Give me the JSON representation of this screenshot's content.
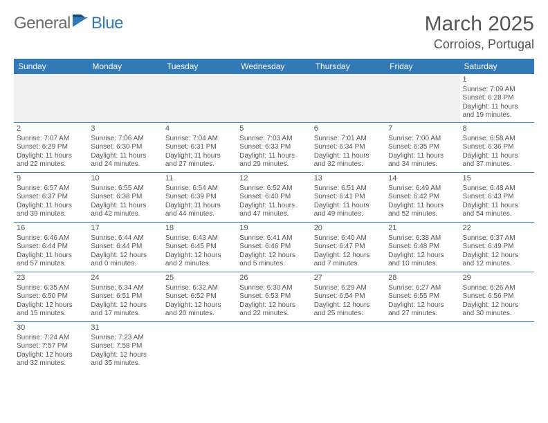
{
  "brand": {
    "general": "General",
    "blue": "Blue"
  },
  "title": "March 2025",
  "location": "Corroios, Portugal",
  "colors": {
    "accent": "#3279b7",
    "text": "#555555",
    "blank_bg": "#f0f0f0",
    "bg": "#ffffff"
  },
  "weekdays": [
    "Sunday",
    "Monday",
    "Tuesday",
    "Wednesday",
    "Thursday",
    "Friday",
    "Saturday"
  ],
  "weeks": [
    [
      null,
      null,
      null,
      null,
      null,
      null,
      {
        "n": "1",
        "sr": "Sunrise: 7:09 AM",
        "ss": "Sunset: 6:28 PM",
        "d1": "Daylight: 11 hours",
        "d2": "and 19 minutes."
      }
    ],
    [
      {
        "n": "2",
        "sr": "Sunrise: 7:07 AM",
        "ss": "Sunset: 6:29 PM",
        "d1": "Daylight: 11 hours",
        "d2": "and 22 minutes."
      },
      {
        "n": "3",
        "sr": "Sunrise: 7:06 AM",
        "ss": "Sunset: 6:30 PM",
        "d1": "Daylight: 11 hours",
        "d2": "and 24 minutes."
      },
      {
        "n": "4",
        "sr": "Sunrise: 7:04 AM",
        "ss": "Sunset: 6:31 PM",
        "d1": "Daylight: 11 hours",
        "d2": "and 27 minutes."
      },
      {
        "n": "5",
        "sr": "Sunrise: 7:03 AM",
        "ss": "Sunset: 6:33 PM",
        "d1": "Daylight: 11 hours",
        "d2": "and 29 minutes."
      },
      {
        "n": "6",
        "sr": "Sunrise: 7:01 AM",
        "ss": "Sunset: 6:34 PM",
        "d1": "Daylight: 11 hours",
        "d2": "and 32 minutes."
      },
      {
        "n": "7",
        "sr": "Sunrise: 7:00 AM",
        "ss": "Sunset: 6:35 PM",
        "d1": "Daylight: 11 hours",
        "d2": "and 34 minutes."
      },
      {
        "n": "8",
        "sr": "Sunrise: 6:58 AM",
        "ss": "Sunset: 6:36 PM",
        "d1": "Daylight: 11 hours",
        "d2": "and 37 minutes."
      }
    ],
    [
      {
        "n": "9",
        "sr": "Sunrise: 6:57 AM",
        "ss": "Sunset: 6:37 PM",
        "d1": "Daylight: 11 hours",
        "d2": "and 39 minutes."
      },
      {
        "n": "10",
        "sr": "Sunrise: 6:55 AM",
        "ss": "Sunset: 6:38 PM",
        "d1": "Daylight: 11 hours",
        "d2": "and 42 minutes."
      },
      {
        "n": "11",
        "sr": "Sunrise: 6:54 AM",
        "ss": "Sunset: 6:39 PM",
        "d1": "Daylight: 11 hours",
        "d2": "and 44 minutes."
      },
      {
        "n": "12",
        "sr": "Sunrise: 6:52 AM",
        "ss": "Sunset: 6:40 PM",
        "d1": "Daylight: 11 hours",
        "d2": "and 47 minutes."
      },
      {
        "n": "13",
        "sr": "Sunrise: 6:51 AM",
        "ss": "Sunset: 6:41 PM",
        "d1": "Daylight: 11 hours",
        "d2": "and 49 minutes."
      },
      {
        "n": "14",
        "sr": "Sunrise: 6:49 AM",
        "ss": "Sunset: 6:42 PM",
        "d1": "Daylight: 11 hours",
        "d2": "and 52 minutes."
      },
      {
        "n": "15",
        "sr": "Sunrise: 6:48 AM",
        "ss": "Sunset: 6:43 PM",
        "d1": "Daylight: 11 hours",
        "d2": "and 54 minutes."
      }
    ],
    [
      {
        "n": "16",
        "sr": "Sunrise: 6:46 AM",
        "ss": "Sunset: 6:44 PM",
        "d1": "Daylight: 11 hours",
        "d2": "and 57 minutes."
      },
      {
        "n": "17",
        "sr": "Sunrise: 6:44 AM",
        "ss": "Sunset: 6:44 PM",
        "d1": "Daylight: 12 hours",
        "d2": "and 0 minutes."
      },
      {
        "n": "18",
        "sr": "Sunrise: 6:43 AM",
        "ss": "Sunset: 6:45 PM",
        "d1": "Daylight: 12 hours",
        "d2": "and 2 minutes."
      },
      {
        "n": "19",
        "sr": "Sunrise: 6:41 AM",
        "ss": "Sunset: 6:46 PM",
        "d1": "Daylight: 12 hours",
        "d2": "and 5 minutes."
      },
      {
        "n": "20",
        "sr": "Sunrise: 6:40 AM",
        "ss": "Sunset: 6:47 PM",
        "d1": "Daylight: 12 hours",
        "d2": "and 7 minutes."
      },
      {
        "n": "21",
        "sr": "Sunrise: 6:38 AM",
        "ss": "Sunset: 6:48 PM",
        "d1": "Daylight: 12 hours",
        "d2": "and 10 minutes."
      },
      {
        "n": "22",
        "sr": "Sunrise: 6:37 AM",
        "ss": "Sunset: 6:49 PM",
        "d1": "Daylight: 12 hours",
        "d2": "and 12 minutes."
      }
    ],
    [
      {
        "n": "23",
        "sr": "Sunrise: 6:35 AM",
        "ss": "Sunset: 6:50 PM",
        "d1": "Daylight: 12 hours",
        "d2": "and 15 minutes."
      },
      {
        "n": "24",
        "sr": "Sunrise: 6:34 AM",
        "ss": "Sunset: 6:51 PM",
        "d1": "Daylight: 12 hours",
        "d2": "and 17 minutes."
      },
      {
        "n": "25",
        "sr": "Sunrise: 6:32 AM",
        "ss": "Sunset: 6:52 PM",
        "d1": "Daylight: 12 hours",
        "d2": "and 20 minutes."
      },
      {
        "n": "26",
        "sr": "Sunrise: 6:30 AM",
        "ss": "Sunset: 6:53 PM",
        "d1": "Daylight: 12 hours",
        "d2": "and 22 minutes."
      },
      {
        "n": "27",
        "sr": "Sunrise: 6:29 AM",
        "ss": "Sunset: 6:54 PM",
        "d1": "Daylight: 12 hours",
        "d2": "and 25 minutes."
      },
      {
        "n": "28",
        "sr": "Sunrise: 6:27 AM",
        "ss": "Sunset: 6:55 PM",
        "d1": "Daylight: 12 hours",
        "d2": "and 27 minutes."
      },
      {
        "n": "29",
        "sr": "Sunrise: 6:26 AM",
        "ss": "Sunset: 6:56 PM",
        "d1": "Daylight: 12 hours",
        "d2": "and 30 minutes."
      }
    ],
    [
      {
        "n": "30",
        "sr": "Sunrise: 7:24 AM",
        "ss": "Sunset: 7:57 PM",
        "d1": "Daylight: 12 hours",
        "d2": "and 32 minutes."
      },
      {
        "n": "31",
        "sr": "Sunrise: 7:23 AM",
        "ss": "Sunset: 7:58 PM",
        "d1": "Daylight: 12 hours",
        "d2": "and 35 minutes."
      },
      null,
      null,
      null,
      null,
      null
    ]
  ]
}
